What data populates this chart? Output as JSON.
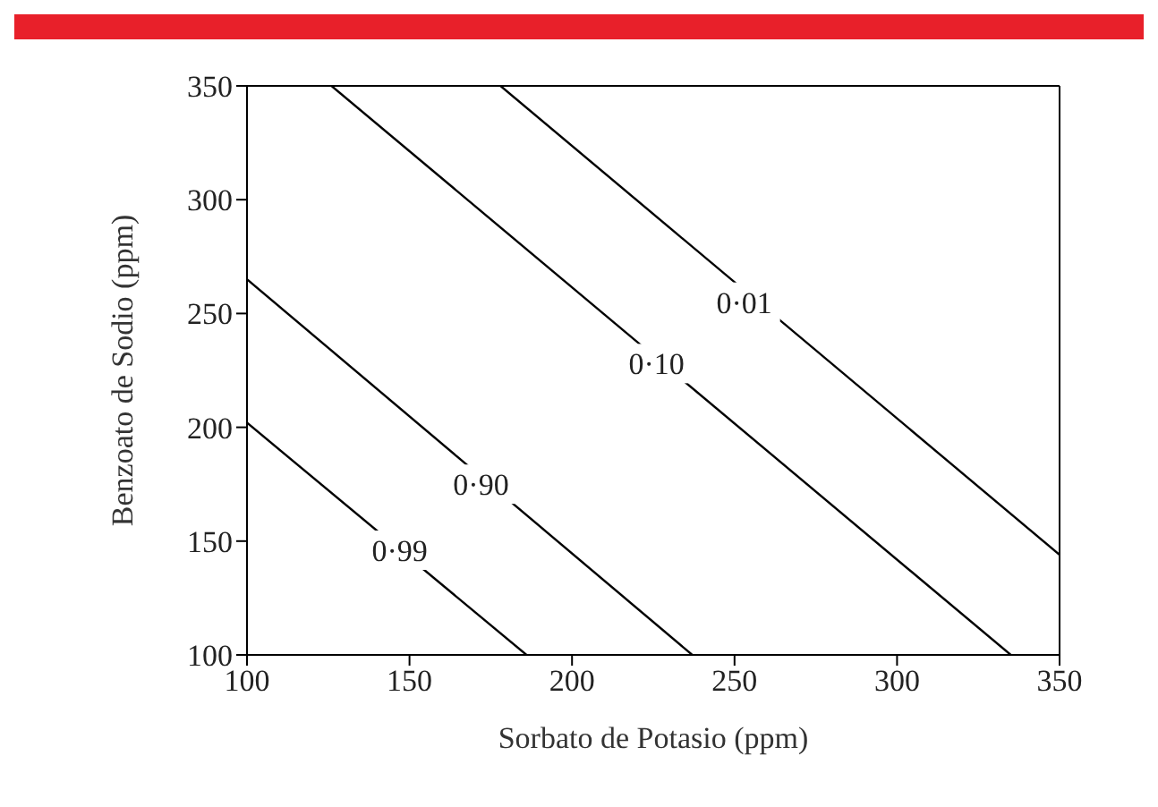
{
  "chart_data": {
    "type": "line",
    "xlabel": "Sorbato de Potasio (ppm)",
    "ylabel": "Benzoato de Sodio (ppm)",
    "xlim": [
      100,
      350
    ],
    "xticks": [
      100,
      150,
      200,
      250,
      300,
      350
    ],
    "ylim": [
      100,
      350
    ],
    "yticks": [
      100,
      150,
      200,
      250,
      300,
      350
    ],
    "marker": "none",
    "line_style": "solid",
    "series": [
      {
        "color": "#000000",
        "x": [
          100,
          186
        ],
        "values": [
          202,
          100
        ]
      },
      {
        "color": "#000000",
        "x": [
          100,
          237
        ],
        "values": [
          265,
          100
        ]
      },
      {
        "color": "#000000",
        "x": [
          126,
          335
        ],
        "values": [
          350,
          100
        ]
      },
      {
        "color": "#000000",
        "x": [
          178,
          350
        ],
        "values": [
          350,
          144
        ]
      }
    ],
    "annotations": [
      {
        "text": "0·99",
        "x": 147,
        "y": 146
      },
      {
        "text": "0·90",
        "x": 172,
        "y": 175
      },
      {
        "text": "0·10",
        "x": 226,
        "y": 228
      },
      {
        "text": "0·01",
        "x": 253,
        "y": 255
      }
    ]
  }
}
